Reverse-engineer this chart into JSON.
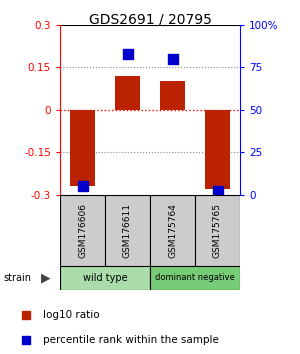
{
  "title": "GDS2691 / 20795",
  "samples": [
    "GSM176606",
    "GSM176611",
    "GSM175764",
    "GSM175765"
  ],
  "log10_ratios": [
    -0.27,
    0.12,
    0.1,
    -0.28
  ],
  "percentile_ranks": [
    5,
    83,
    80,
    2
  ],
  "groups": [
    {
      "label": "wild type",
      "samples": [
        0,
        1
      ],
      "color": "#90ee90"
    },
    {
      "label": "dominant negative",
      "samples": [
        2,
        3
      ],
      "color": "#66cc66"
    }
  ],
  "ylim_left": [
    -0.3,
    0.3
  ],
  "ylim_right": [
    0,
    100
  ],
  "yticks_left": [
    -0.3,
    -0.15,
    0,
    0.15,
    0.3
  ],
  "yticks_right": [
    0,
    25,
    50,
    75,
    100
  ],
  "ytick_labels_left": [
    "-0.3",
    "-0.15",
    "0",
    "0.15",
    "0.3"
  ],
  "ytick_labels_right": [
    "0",
    "25",
    "50",
    "75",
    "100%"
  ],
  "hlines": [
    0.15,
    0,
    -0.15
  ],
  "hline_colors": [
    "#888888",
    "red",
    "#888888"
  ],
  "hline_styles": [
    "dotted",
    "dotted",
    "dotted"
  ],
  "bar_color": "#bb2200",
  "dot_color": "#0000cc",
  "bar_width": 0.55,
  "dot_size": 50,
  "sample_row_color": "#cccccc",
  "title_fontsize": 10,
  "tick_fontsize": 7.5,
  "sample_fontsize": 6.5,
  "group_fontsize": 7,
  "legend_fontsize": 7.5,
  "group_colors": [
    "#aaddaa",
    "#77cc77"
  ]
}
